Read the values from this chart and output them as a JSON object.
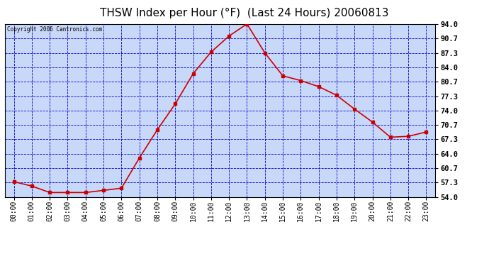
{
  "title": "THSW Index per Hour (°F)  (Last 24 Hours) 20060813",
  "copyright": "Copyright 2006 Cantronics.com",
  "x_labels": [
    "00:00",
    "01:00",
    "02:00",
    "03:00",
    "04:00",
    "05:00",
    "06:00",
    "07:00",
    "08:00",
    "09:00",
    "10:00",
    "11:00",
    "12:00",
    "13:00",
    "14:00",
    "15:00",
    "16:00",
    "17:00",
    "18:00",
    "19:00",
    "20:00",
    "21:00",
    "22:00",
    "23:00"
  ],
  "y_values": [
    57.5,
    56.5,
    55.0,
    55.0,
    55.0,
    55.5,
    56.0,
    63.0,
    69.5,
    75.5,
    82.5,
    87.5,
    91.2,
    94.0,
    87.3,
    82.0,
    80.9,
    79.5,
    77.5,
    74.3,
    71.3,
    67.8,
    68.0,
    69.0
  ],
  "y_ticks": [
    54.0,
    57.3,
    60.7,
    64.0,
    67.3,
    70.7,
    74.0,
    77.3,
    80.7,
    84.0,
    87.3,
    90.7,
    94.0
  ],
  "ylim": [
    54.0,
    94.0
  ],
  "line_color": "#cc0000",
  "marker_color": "#cc0000",
  "bg_color": "#c8d8f8",
  "grid_color": "#0000cc",
  "border_color": "#000000",
  "title_color": "#000000",
  "copyright_color": "#000000",
  "fig_width": 6.9,
  "fig_height": 3.75,
  "dpi": 100
}
